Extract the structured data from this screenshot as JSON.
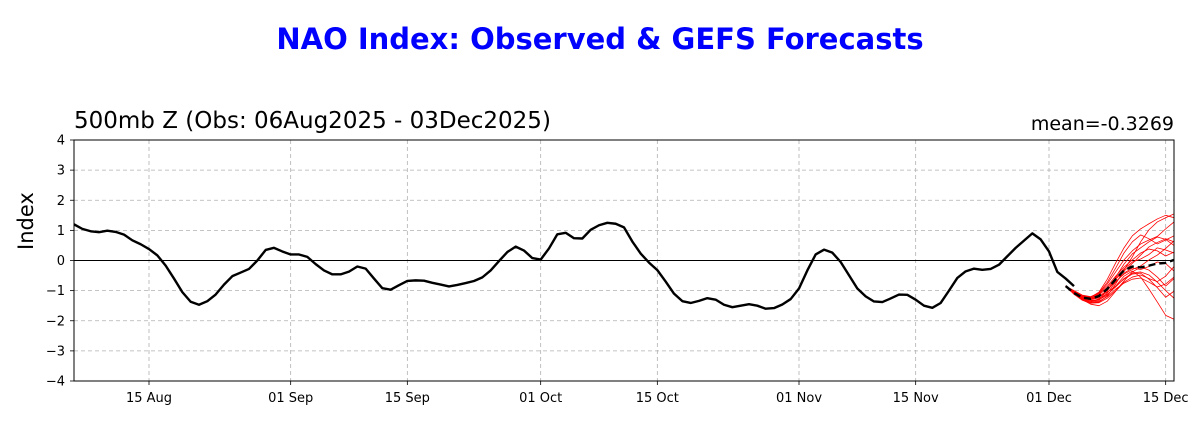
{
  "title": "NAO Index: Observed & GEFS Forecasts",
  "subtitle": "500mb Z (Obs: 06Aug2025 - 03Dec2025)",
  "mean_label": "mean=-0.3269",
  "colors": {
    "title": "#0000ff",
    "observed": "#000000",
    "members": "#ff0000",
    "ensemble_mean": "#000000",
    "grid": "#b0b0b0"
  },
  "chart_data": {
    "type": "line",
    "title": "NAO Index: Observed & GEFS Forecasts",
    "subtitle": "500mb Z (Obs: 06Aug2025 - 03Dec2025)",
    "xlabel": "",
    "ylabel": "Index",
    "x_range": [
      "2025-08-06",
      "2025-12-16"
    ],
    "ylim": [
      -4,
      4
    ],
    "yticks": [
      4,
      3,
      2,
      1,
      0,
      -1,
      -2,
      -3,
      -4
    ],
    "yticklabels": [
      "4",
      "3",
      "2",
      "1",
      "0",
      "−1",
      "−2",
      "−3",
      "−4"
    ],
    "xticks": [
      "2025-08-15",
      "2025-09-01",
      "2025-09-15",
      "2025-10-01",
      "2025-10-15",
      "2025-11-01",
      "2025-11-15",
      "2025-12-01",
      "2025-12-15"
    ],
    "xticklabels": [
      "15 Aug",
      "01 Sep",
      "15 Sep",
      "01 Oct",
      "15 Oct",
      "01 Nov",
      "15 Nov",
      "01 Dec",
      "15 Dec"
    ],
    "grid": true,
    "zero_line": true,
    "annotations": [
      "mean=-0.3269"
    ],
    "observed": {
      "start_date": "2025-08-06",
      "values": [
        1.2,
        1.05,
        0.97,
        0.94,
        0.99,
        0.95,
        0.86,
        0.67,
        0.54,
        0.38,
        0.17,
        -0.17,
        -0.6,
        -1.05,
        -1.37,
        -1.47,
        -1.35,
        -1.13,
        -0.8,
        -0.52,
        -0.4,
        -0.28,
        0.0,
        0.35,
        0.42,
        0.3,
        0.2,
        0.2,
        0.12,
        -0.12,
        -0.33,
        -0.46,
        -0.46,
        -0.37,
        -0.2,
        -0.27,
        -0.6,
        -0.92,
        -0.97,
        -0.82,
        -0.68,
        -0.66,
        -0.67,
        -0.74,
        -0.8,
        -0.86,
        -0.81,
        -0.75,
        -0.68,
        -0.56,
        -0.33,
        -0.02,
        0.28,
        0.46,
        0.33,
        0.08,
        0.03,
        0.4,
        0.87,
        0.92,
        0.74,
        0.73,
        1.02,
        1.17,
        1.25,
        1.22,
        1.1,
        0.63,
        0.23,
        -0.07,
        -0.32,
        -0.7,
        -1.1,
        -1.35,
        -1.41,
        -1.34,
        -1.25,
        -1.3,
        -1.47,
        -1.55,
        -1.5,
        -1.45,
        -1.5,
        -1.6,
        -1.58,
        -1.46,
        -1.28,
        -0.93,
        -0.33,
        0.2,
        0.36,
        0.26,
        -0.05,
        -0.49,
        -0.93,
        -1.19,
        -1.36,
        -1.38,
        -1.26,
        -1.13,
        -1.14,
        -1.3,
        -1.5,
        -1.57,
        -1.41,
        -1.0,
        -0.58,
        -0.36,
        -0.27,
        -0.31,
        -0.28,
        -0.14,
        0.14,
        0.42,
        0.66,
        0.9,
        0.7,
        0.3,
        -0.38,
        -0.6,
        -0.85
      ]
    },
    "forecast_start_date": "2025-12-03",
    "ensemble_mean": {
      "values": [
        -0.85,
        -1.08,
        -1.23,
        -1.27,
        -1.18,
        -0.94,
        -0.62,
        -0.33,
        -0.2,
        -0.23,
        -0.17,
        -0.1,
        -0.08,
        0.02
      ]
    },
    "members": [
      {
        "values": [
          -0.85,
          -1.05,
          -1.2,
          -1.22,
          -1.05,
          -0.62,
          -0.08,
          0.42,
          0.82,
          1.05,
          1.22,
          1.38,
          1.5,
          1.42
        ]
      },
      {
        "values": [
          -0.85,
          -1.1,
          -1.3,
          -1.4,
          -1.38,
          -1.18,
          -0.78,
          -0.32,
          0.12,
          0.62,
          1.02,
          1.28,
          1.42,
          1.55
        ]
      },
      {
        "values": [
          -0.85,
          -1.0,
          -1.15,
          -1.2,
          -1.08,
          -0.72,
          -0.25,
          0.25,
          0.62,
          0.85,
          0.72,
          0.55,
          0.68,
          0.82
        ]
      },
      {
        "values": [
          -0.85,
          -1.12,
          -1.28,
          -1.35,
          -1.28,
          -1.02,
          -0.55,
          -0.12,
          0.22,
          0.42,
          0.62,
          0.78,
          0.7,
          0.5
        ]
      },
      {
        "values": [
          -0.85,
          -1.05,
          -1.22,
          -1.3,
          -1.22,
          -0.98,
          -0.62,
          -0.35,
          -0.1,
          0.18,
          0.45,
          0.6,
          0.72,
          0.62
        ]
      },
      {
        "values": [
          -0.85,
          -1.1,
          -1.3,
          -1.45,
          -1.5,
          -1.35,
          -1.02,
          -0.72,
          -0.55,
          -0.48,
          -0.6,
          -0.7,
          -0.52,
          -0.2
        ]
      },
      {
        "values": [
          -0.85,
          -1.02,
          -1.18,
          -1.25,
          -1.2,
          -1.05,
          -0.85,
          -0.62,
          -0.45,
          -0.42,
          -0.62,
          -0.9,
          -1.22,
          -1.02
        ]
      },
      {
        "values": [
          -0.85,
          -1.08,
          -1.25,
          -1.32,
          -1.3,
          -1.15,
          -0.85,
          -0.52,
          -0.35,
          -0.55,
          -0.95,
          -1.38,
          -1.82,
          -1.95
        ]
      },
      {
        "values": [
          -0.85,
          -1.06,
          -1.2,
          -1.25,
          -1.12,
          -0.85,
          -0.52,
          -0.22,
          0.02,
          0.25,
          0.38,
          0.32,
          0.15,
          0.28
        ]
      },
      {
        "values": [
          -0.85,
          -1.12,
          -1.32,
          -1.42,
          -1.4,
          -1.25,
          -1.0,
          -0.68,
          -0.38,
          -0.22,
          -0.32,
          -0.55,
          -0.85,
          -0.6
        ]
      },
      {
        "values": [
          -0.85,
          -1.04,
          -1.22,
          -1.28,
          -1.15,
          -0.9,
          -0.58,
          -0.28,
          -0.05,
          0.05,
          0.2,
          0.42,
          0.35,
          0.25
        ]
      },
      {
        "values": [
          -0.85,
          -1.09,
          -1.24,
          -1.28,
          -1.25,
          -1.12,
          -0.88,
          -0.6,
          -0.42,
          -0.38,
          -0.48,
          -0.72,
          -1.0,
          -1.25
        ]
      },
      {
        "values": [
          -0.85,
          -1.03,
          -1.16,
          -1.22,
          -1.1,
          -0.78,
          -0.38,
          0.02,
          0.32,
          0.55,
          0.68,
          0.8,
          1.05,
          1.28
        ]
      },
      {
        "values": [
          -0.85,
          -1.1,
          -1.26,
          -1.35,
          -1.32,
          -1.08,
          -0.72,
          -0.42,
          -0.25,
          -0.3,
          -0.2,
          -0.05,
          -0.1,
          -0.35
        ]
      },
      {
        "values": [
          -0.85,
          -1.07,
          -1.2,
          -1.28,
          -1.2,
          -0.98,
          -0.7,
          -0.45,
          -0.3,
          -0.18,
          0.02,
          0.18,
          0.4,
          0.65
        ]
      },
      {
        "values": [
          -0.85,
          -1.11,
          -1.28,
          -1.38,
          -1.35,
          -1.2,
          -0.95,
          -0.75,
          -0.62,
          -0.58,
          -0.72,
          -0.88,
          -0.78,
          -0.55
        ]
      }
    ]
  }
}
